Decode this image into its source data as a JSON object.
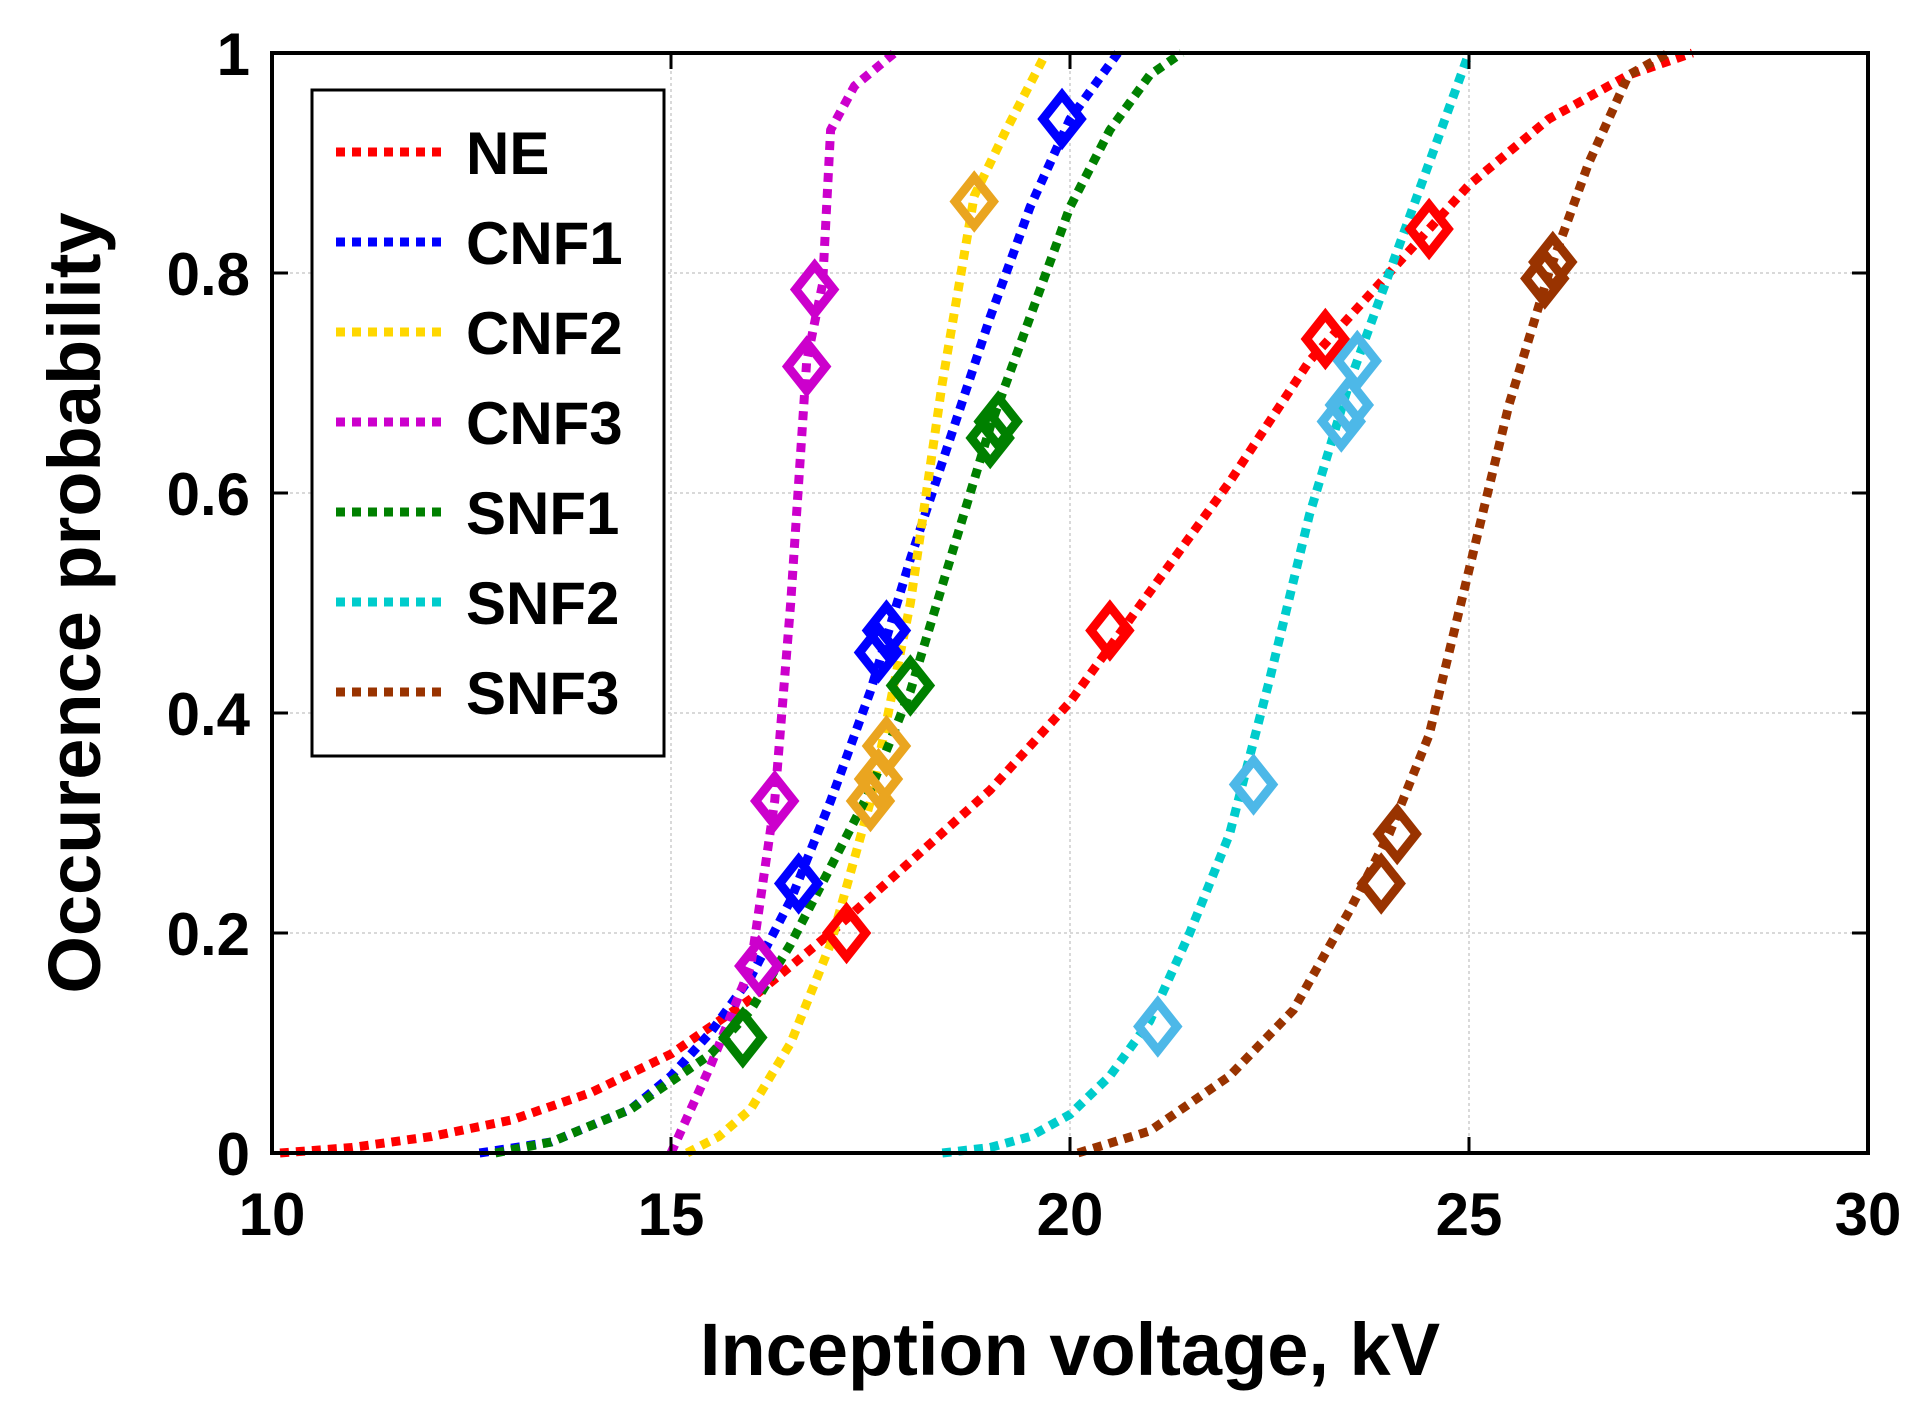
{
  "chart_data": {
    "type": "line",
    "title": "",
    "xlabel": "Inception voltage, kV",
    "ylabel": "Occurence probability",
    "xlim": [
      10,
      30
    ],
    "ylim": [
      0,
      1
    ],
    "xticks": [
      10,
      15,
      20,
      25,
      30
    ],
    "yticks": [
      0,
      0.2,
      0.4,
      0.6,
      0.8,
      1
    ],
    "xtick_labels": [
      "10",
      "15",
      "20",
      "25",
      "30"
    ],
    "ytick_labels": [
      "0",
      "0.2",
      "0.4",
      "0.6",
      "0.8",
      "1"
    ],
    "grid": true,
    "legend_position": "top-left",
    "series": [
      {
        "name": "NE",
        "color": "#ff0000",
        "marker_color": "#ff0000",
        "line_x": [
          10.1,
          11.0,
          12.0,
          13.0,
          14.0,
          15.0,
          16.0,
          17.0,
          18.0,
          19.0,
          20.0,
          21.0,
          22.0,
          23.0,
          24.0,
          25.0,
          26.0,
          27.0,
          27.8
        ],
        "line_y": [
          0.0,
          0.005,
          0.015,
          0.03,
          0.055,
          0.09,
          0.14,
          0.2,
          0.265,
          0.33,
          0.41,
          0.51,
          0.61,
          0.72,
          0.8,
          0.88,
          0.94,
          0.98,
          1.0
        ],
        "markers_x": [
          17.2,
          20.5,
          23.2,
          24.5
        ],
        "markers_y": [
          0.2,
          0.475,
          0.74,
          0.84
        ]
      },
      {
        "name": "CNF1",
        "color": "#0000ff",
        "marker_color": "#0000ff",
        "line_x": [
          12.6,
          13.5,
          14.5,
          15.0,
          15.5,
          16.0,
          16.5,
          17.0,
          17.5,
          18.0,
          18.5,
          19.0,
          19.5,
          20.0,
          20.6
        ],
        "line_y": [
          0.0,
          0.01,
          0.04,
          0.07,
          0.11,
          0.16,
          0.23,
          0.32,
          0.42,
          0.54,
          0.65,
          0.76,
          0.86,
          0.94,
          1.0
        ],
        "markers_x": [
          16.6,
          17.6,
          17.7,
          19.9
        ],
        "markers_y": [
          0.245,
          0.455,
          0.475,
          0.94
        ]
      },
      {
        "name": "CNF2",
        "color": "#ffd700",
        "marker_color": "#eaa520",
        "line_x": [
          15.2,
          15.6,
          16.0,
          16.5,
          17.0,
          17.5,
          18.0,
          18.4,
          18.8,
          19.2,
          19.7
        ],
        "line_y": [
          0.0,
          0.015,
          0.04,
          0.1,
          0.19,
          0.32,
          0.5,
          0.7,
          0.87,
          0.93,
          1.0
        ],
        "markers_x": [
          17.5,
          17.6,
          17.7,
          18.8
        ],
        "markers_y": [
          0.32,
          0.34,
          0.37,
          0.865
        ]
      },
      {
        "name": "CNF3",
        "color": "#cc00cc",
        "marker_color": "#cc00cc",
        "line_x": [
          15.0,
          15.5,
          16.0,
          16.3,
          16.5,
          16.7,
          16.9,
          17.0,
          17.3,
          17.8
        ],
        "line_y": [
          0.0,
          0.08,
          0.17,
          0.32,
          0.5,
          0.72,
          0.79,
          0.93,
          0.97,
          1.0
        ],
        "markers_x": [
          16.1,
          16.3,
          16.7,
          16.8
        ],
        "markers_y": [
          0.17,
          0.32,
          0.715,
          0.785
        ]
      },
      {
        "name": "SNF1",
        "color": "#008000",
        "marker_color": "#008000",
        "line_x": [
          12.8,
          13.5,
          14.5,
          15.0,
          15.5,
          16.0,
          16.5,
          17.0,
          17.5,
          18.0,
          18.5,
          19.0,
          19.5,
          20.0,
          20.5,
          21.0,
          21.4
        ],
        "line_y": [
          0.0,
          0.01,
          0.04,
          0.065,
          0.09,
          0.13,
          0.19,
          0.26,
          0.33,
          0.42,
          0.54,
          0.66,
          0.76,
          0.86,
          0.93,
          0.98,
          1.0
        ],
        "markers_x": [
          15.9,
          18.0,
          19.0,
          19.1
        ],
        "markers_y": [
          0.105,
          0.425,
          0.65,
          0.665
        ]
      },
      {
        "name": "SNF2",
        "color": "#00cccc",
        "marker_color": "#4db8e8",
        "line_x": [
          18.4,
          19.0,
          19.5,
          20.0,
          20.5,
          21.0,
          21.5,
          22.0,
          22.5,
          23.0,
          23.5,
          24.0,
          24.5,
          25.0
        ],
        "line_y": [
          0.0,
          0.005,
          0.015,
          0.035,
          0.07,
          0.12,
          0.2,
          0.29,
          0.43,
          0.58,
          0.7,
          0.8,
          0.9,
          1.0
        ],
        "markers_x": [
          21.1,
          22.3,
          23.4,
          23.5,
          23.6
        ],
        "markers_y": [
          0.115,
          0.335,
          0.665,
          0.68,
          0.72
        ]
      },
      {
        "name": "SNF3",
        "color": "#993300",
        "marker_color": "#993300",
        "line_x": [
          20.1,
          21.0,
          22.0,
          22.8,
          23.5,
          24.0,
          24.5,
          25.0,
          25.5,
          26.0,
          26.5,
          27.0,
          27.5
        ],
        "line_y": [
          0.0,
          0.02,
          0.07,
          0.13,
          0.22,
          0.29,
          0.38,
          0.53,
          0.68,
          0.8,
          0.9,
          0.98,
          1.0
        ],
        "markers_x": [
          23.9,
          24.1,
          25.95,
          26.05
        ],
        "markers_y": [
          0.245,
          0.29,
          0.795,
          0.81
        ]
      }
    ]
  }
}
